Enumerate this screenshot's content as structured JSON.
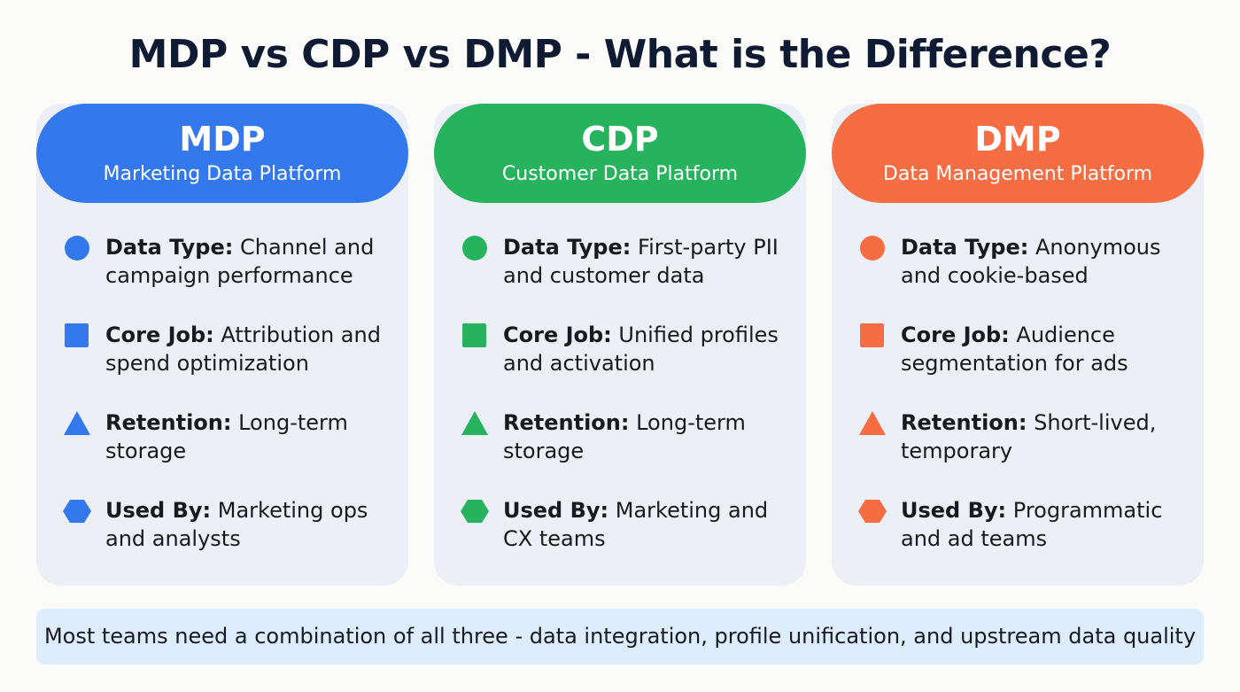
{
  "title": "MDP vs CDP vs DMP - What is the Difference?",
  "cards": [
    {
      "acronym": "MDP",
      "full_name": "Marketing Data Platform",
      "color": "#3478ee",
      "items": [
        {
          "icon": "circle-icon",
          "label": "Data Type:",
          "text": "Channel and campaign performance"
        },
        {
          "icon": "square-icon",
          "label": "Core Job:",
          "text": "Attribution and spend optimization"
        },
        {
          "icon": "triangle-icon",
          "label": "Retention:",
          "text": "Long-term storage"
        },
        {
          "icon": "hexagon-icon",
          "label": "Used By:",
          "text": "Marketing ops and analysts"
        }
      ]
    },
    {
      "acronym": "CDP",
      "full_name": "Customer Data Platform",
      "color": "#27b35d",
      "items": [
        {
          "icon": "circle-icon",
          "label": "Data Type:",
          "text": "First-party PII and customer data"
        },
        {
          "icon": "square-icon",
          "label": "Core Job:",
          "text": "Unified profiles and activation"
        },
        {
          "icon": "triangle-icon",
          "label": "Retention:",
          "text": "Long-term storage"
        },
        {
          "icon": "hexagon-icon",
          "label": "Used By:",
          "text": "Marketing and CX teams"
        }
      ]
    },
    {
      "acronym": "DMP",
      "full_name": "Data Management Platform",
      "color": "#f66c43",
      "items": [
        {
          "icon": "circle-icon",
          "label": "Data Type:",
          "text": "Anonymous and cookie-based"
        },
        {
          "icon": "square-icon",
          "label": "Core Job:",
          "text": "Audience segmentation for ads"
        },
        {
          "icon": "triangle-icon",
          "label": "Retention:",
          "text": "Short-lived, temporary"
        },
        {
          "icon": "hexagon-icon",
          "label": "Used By:",
          "text": "Programmatic and ad teams"
        }
      ]
    }
  ],
  "footer": "Most teams need a combination of all three - data integration, profile unification, and upstream data quality"
}
